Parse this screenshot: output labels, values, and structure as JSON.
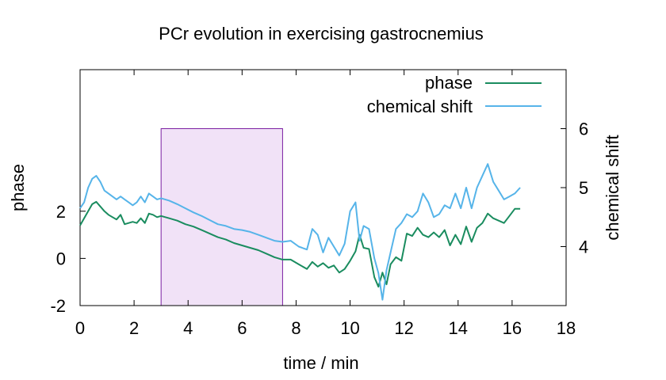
{
  "chart_data": {
    "type": "line",
    "title": "PCr evolution in exercising gastrocnemius",
    "xlabel": "time / min",
    "ylabel_left": "phase",
    "ylabel_right": "chemical shift",
    "xlim": [
      0,
      18
    ],
    "ylim_left": [
      -2,
      8
    ],
    "ylim_right": [
      3,
      7
    ],
    "x_ticks": [
      "0",
      "2",
      "4",
      "6",
      "8",
      "10",
      "12",
      "14",
      "16",
      "18"
    ],
    "y_left_ticks": [
      "-2",
      "0",
      "2"
    ],
    "y_right_ticks": [
      "4",
      "5",
      "6"
    ],
    "grid": false,
    "legend_position": "top-right",
    "highlight": {
      "x_start": 3.0,
      "x_end": 7.5,
      "y_start": -2,
      "y_end": 5.5,
      "fill": "#f1e2f7",
      "stroke": "#7b1fa2"
    },
    "series": [
      {
        "name": "phase",
        "axis": "left",
        "color": "#1a8c5f",
        "x": [
          0,
          0.15,
          0.3,
          0.45,
          0.6,
          0.75,
          0.9,
          1.05,
          1.2,
          1.35,
          1.5,
          1.65,
          1.8,
          1.95,
          2.1,
          2.25,
          2.4,
          2.55,
          2.7,
          2.85,
          3.0,
          3.3,
          3.6,
          3.9,
          4.2,
          4.5,
          4.8,
          5.1,
          5.4,
          5.7,
          6.0,
          6.3,
          6.6,
          6.9,
          7.2,
          7.5,
          7.8,
          8.1,
          8.4,
          8.6,
          8.8,
          9.0,
          9.2,
          9.4,
          9.6,
          9.8,
          10.0,
          10.2,
          10.35,
          10.5,
          10.7,
          10.9,
          11.05,
          11.2,
          11.35,
          11.5,
          11.7,
          11.9,
          12.1,
          12.3,
          12.5,
          12.7,
          12.9,
          13.1,
          13.3,
          13.5,
          13.7,
          13.9,
          14.1,
          14.3,
          14.5,
          14.7,
          14.9,
          15.1,
          15.3,
          15.5,
          15.7,
          15.9,
          16.1,
          16.3
        ],
        "values": [
          1.4,
          1.7,
          2.0,
          2.3,
          2.4,
          2.2,
          2.0,
          1.85,
          1.75,
          1.65,
          1.85,
          1.45,
          1.5,
          1.55,
          1.5,
          1.7,
          1.5,
          1.9,
          1.85,
          1.75,
          1.8,
          1.7,
          1.6,
          1.45,
          1.35,
          1.2,
          1.05,
          0.9,
          0.8,
          0.65,
          0.55,
          0.45,
          0.35,
          0.2,
          0.05,
          -0.05,
          -0.05,
          -0.25,
          -0.45,
          -0.15,
          -0.35,
          -0.2,
          -0.4,
          -0.3,
          -0.6,
          -0.45,
          -0.1,
          0.3,
          1.0,
          0.45,
          0.4,
          -0.8,
          -1.2,
          -0.6,
          -1.1,
          -0.25,
          0.05,
          -0.1,
          1.05,
          0.95,
          1.3,
          1.0,
          0.9,
          1.1,
          0.9,
          1.2,
          0.55,
          1.0,
          0.6,
          1.35,
          0.7,
          1.3,
          1.5,
          1.9,
          1.7,
          1.6,
          1.5,
          1.8,
          2.1,
          2.1
        ]
      },
      {
        "name": "chemical shift",
        "axis": "right",
        "color": "#56b4e9",
        "x": [
          0,
          0.15,
          0.3,
          0.45,
          0.6,
          0.75,
          0.9,
          1.05,
          1.2,
          1.35,
          1.5,
          1.65,
          1.8,
          1.95,
          2.1,
          2.25,
          2.4,
          2.55,
          2.7,
          2.85,
          3.0,
          3.3,
          3.6,
          3.9,
          4.2,
          4.5,
          4.8,
          5.1,
          5.4,
          5.7,
          6.0,
          6.3,
          6.6,
          6.9,
          7.2,
          7.5,
          7.8,
          8.1,
          8.4,
          8.6,
          8.8,
          9.0,
          9.2,
          9.4,
          9.6,
          9.8,
          10.0,
          10.2,
          10.35,
          10.5,
          10.7,
          10.9,
          11.05,
          11.2,
          11.35,
          11.5,
          11.7,
          11.9,
          12.1,
          12.3,
          12.5,
          12.7,
          12.9,
          13.1,
          13.3,
          13.5,
          13.7,
          13.9,
          14.1,
          14.3,
          14.5,
          14.7,
          14.9,
          15.1,
          15.3,
          15.5,
          15.7,
          15.9,
          16.1,
          16.3
        ],
        "values": [
          4.65,
          4.75,
          5.0,
          5.15,
          5.2,
          5.1,
          4.95,
          4.9,
          4.85,
          4.8,
          4.85,
          4.8,
          4.75,
          4.7,
          4.75,
          4.85,
          4.75,
          4.9,
          4.85,
          4.8,
          4.82,
          4.78,
          4.72,
          4.65,
          4.58,
          4.52,
          4.45,
          4.38,
          4.35,
          4.3,
          4.28,
          4.25,
          4.2,
          4.15,
          4.1,
          4.08,
          4.1,
          4.0,
          3.95,
          4.3,
          4.2,
          3.9,
          4.15,
          4.0,
          3.85,
          4.05,
          4.6,
          4.75,
          4.1,
          4.35,
          4.3,
          3.8,
          3.55,
          3.1,
          3.6,
          3.9,
          4.3,
          4.4,
          4.55,
          4.5,
          4.6,
          4.9,
          4.75,
          4.5,
          4.55,
          4.7,
          4.65,
          4.9,
          4.65,
          5.0,
          4.65,
          5.0,
          5.2,
          5.4,
          5.1,
          4.95,
          4.8,
          4.85,
          4.9,
          5.0
        ]
      }
    ]
  }
}
